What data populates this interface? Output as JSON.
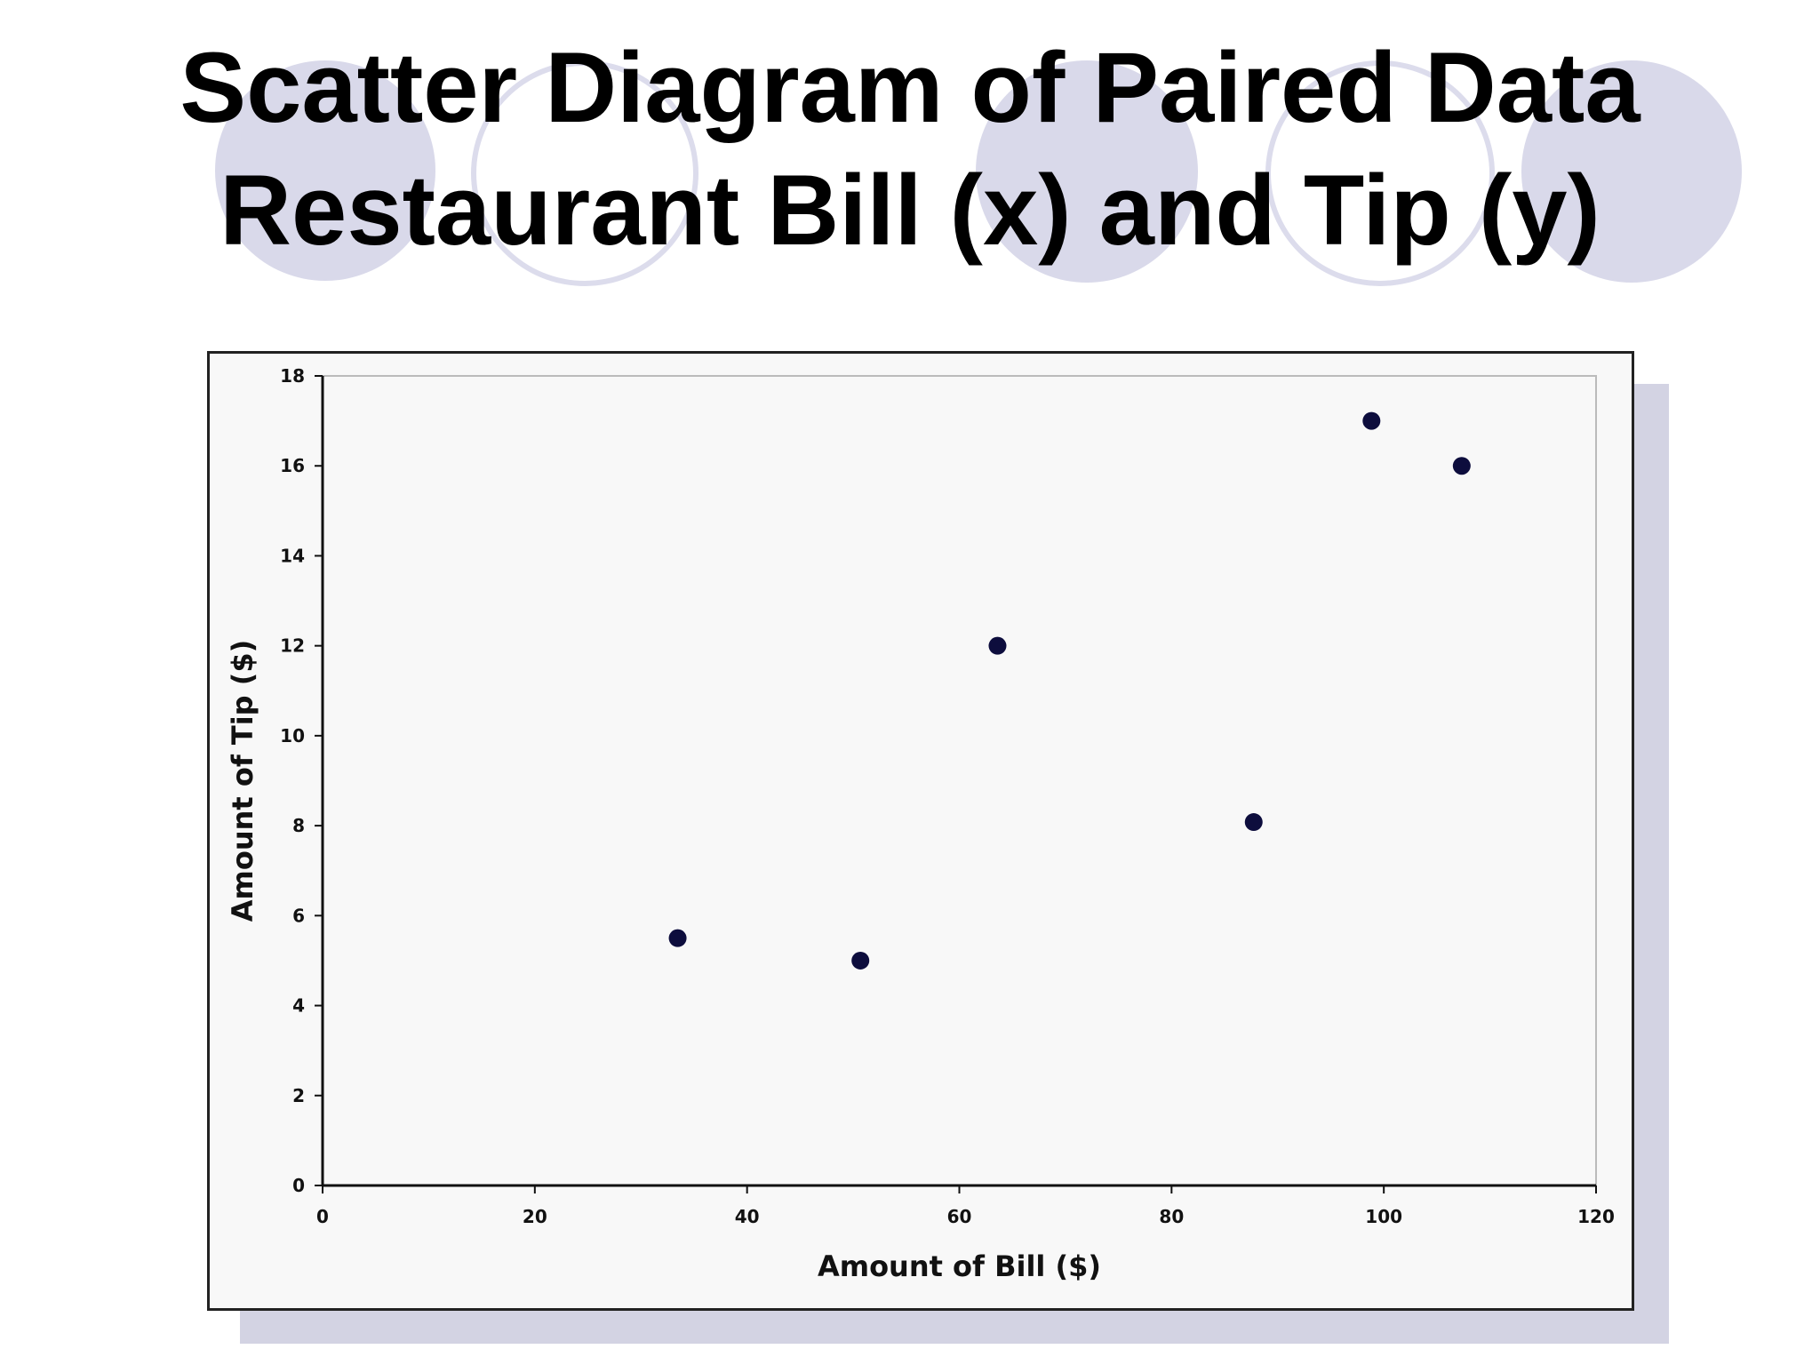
{
  "slide": {
    "title_line1": "Scatter Diagram of Paired Data",
    "title_line2": "Restaurant Bill (x) and Tip (y)"
  },
  "colors": {
    "background": "#ffffff",
    "decor_circle": "#d9d9ea",
    "shadow": "#d3d3e3",
    "plot_bg": "#f8f8f8",
    "marker": "#0d0d3d",
    "axis": "#111111"
  },
  "chart_data": {
    "type": "scatter",
    "title": "",
    "xlabel": "Amount of Bill ($)",
    "ylabel": "Amount of Tip ($)",
    "xlim": [
      0,
      120
    ],
    "ylim": [
      0,
      18
    ],
    "xticks": [
      0,
      20,
      40,
      60,
      80,
      100,
      120
    ],
    "yticks": [
      0,
      2,
      4,
      6,
      8,
      10,
      12,
      14,
      16,
      18
    ],
    "grid": false,
    "legend": "none",
    "series": [
      {
        "points": [
          {
            "x": 33.46,
            "y": 5.5
          },
          {
            "x": 50.68,
            "y": 5.0
          },
          {
            "x": 63.6,
            "y": 12.0
          },
          {
            "x": 87.74,
            "y": 8.08
          },
          {
            "x": 98.84,
            "y": 17.0
          },
          {
            "x": 107.34,
            "y": 16.0
          }
        ]
      }
    ]
  }
}
